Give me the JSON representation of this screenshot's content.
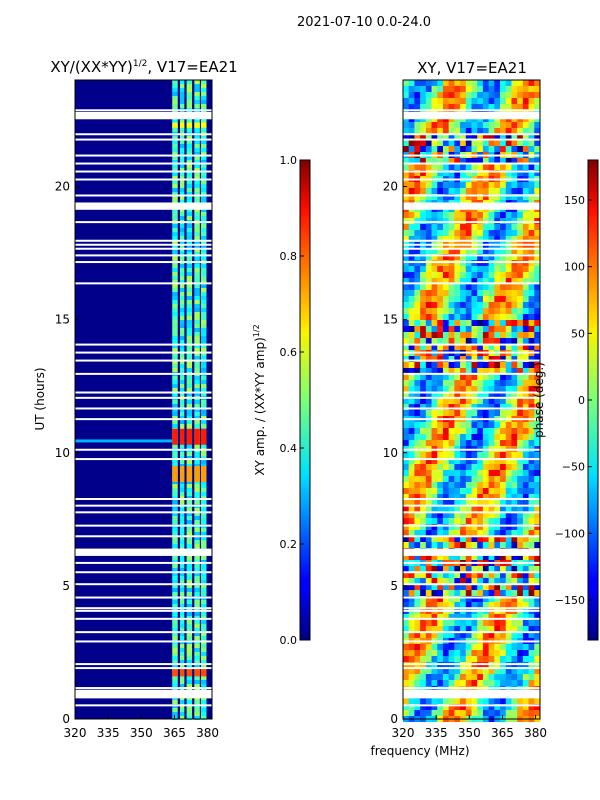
{
  "suptitle": "2021-07-10 0.0-24.0",
  "chart_data": [
    {
      "type": "heatmap",
      "title_main": "XY/(XX*YY)",
      "title_exp": "1/2",
      "title_rest": ", V17=EA21",
      "xlabel": "",
      "ylabel": "UT (hours)",
      "xlim": [
        320,
        382
      ],
      "ylim": [
        0,
        24
      ],
      "xticks": [
        "320",
        "335",
        "350",
        "365",
        "380"
      ],
      "xtick_values": [
        320,
        335,
        350,
        365,
        380
      ],
      "yticks": [
        "0",
        "5",
        "10",
        "15",
        "20"
      ],
      "ytick_values": [
        0,
        5,
        10,
        15,
        20
      ],
      "colorbar": {
        "label_main": "XY amp. / (XX*YY amp)",
        "label_exp": "1/2",
        "range": [
          0.0,
          1.0
        ],
        "ticks": [
          "0.0",
          "0.2",
          "0.4",
          "0.6",
          "0.8",
          "1.0"
        ],
        "tick_values": [
          0.0,
          0.2,
          0.4,
          0.6,
          0.8,
          1.0
        ]
      }
    },
    {
      "type": "heatmap",
      "title": "XY, V17=EA21",
      "xlabel": "frequency (MHz)",
      "ylabel": "",
      "xlim": [
        320,
        382
      ],
      "ylim": [
        0,
        24
      ],
      "xticks": [
        "320",
        "335",
        "350",
        "365",
        "380"
      ],
      "xtick_values": [
        320,
        335,
        350,
        365,
        380
      ],
      "yticks": [
        "0",
        "5",
        "10",
        "15",
        "20"
      ],
      "ytick_values": [
        0,
        5,
        10,
        15,
        20
      ],
      "colorbar": {
        "label": "phase (deg.)",
        "range": [
          -180,
          180
        ],
        "ticks": [
          "−150",
          "−100",
          "−50",
          "0",
          "50",
          "100",
          "150"
        ],
        "tick_values": [
          -150,
          -100,
          -50,
          0,
          50,
          100,
          150
        ]
      }
    }
  ]
}
